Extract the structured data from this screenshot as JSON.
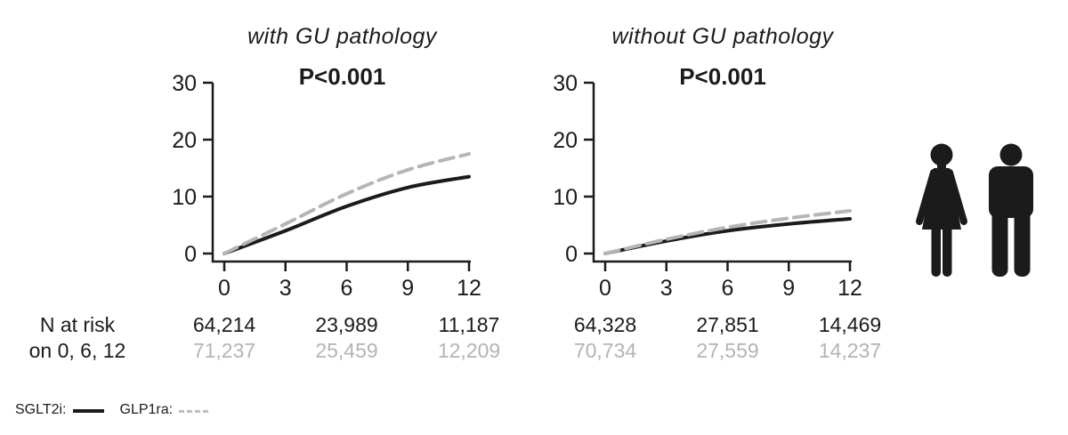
{
  "figure": {
    "background": "#ffffff",
    "colors": {
      "axis": "#1b1b1b",
      "sglt2i": "#1b1b1b",
      "glp1ra": "#b5b5b5",
      "gray_text": "#b4b4b4"
    },
    "risk_label": {
      "line1": "N at risk",
      "line2": "on 0, 6, 12"
    },
    "legend": [
      {
        "label": "SGLT2i:",
        "series": "SGLT2i",
        "style": "solid"
      },
      {
        "label": "GLP1ra:",
        "series": "GLP1ra",
        "style": "dashed"
      }
    ],
    "icons": [
      "woman-icon",
      "man-icon"
    ]
  },
  "chart_data": [
    {
      "type": "line",
      "title": "with GU pathology",
      "p_value": "P<0.001",
      "xlabel": "",
      "ylabel": "",
      "xlim": [
        0,
        12
      ],
      "ylim": [
        0,
        30
      ],
      "x": [
        0,
        3,
        6,
        9,
        12
      ],
      "x_ticks": [
        "0",
        "3",
        "6",
        "9",
        "12"
      ],
      "y_ticks": [
        "0",
        "10",
        "20",
        "30"
      ],
      "grid": false,
      "series": [
        {
          "name": "SGLT2i",
          "line": "solid",
          "color": "#1b1b1b",
          "values": [
            0,
            4.0,
            8.3,
            11.6,
            13.5
          ]
        },
        {
          "name": "GLP1ra",
          "line": "dashed",
          "color": "#b5b5b5",
          "values": [
            0,
            5.2,
            10.5,
            14.7,
            17.5
          ]
        }
      ],
      "n_at_risk": {
        "times": [
          0,
          6,
          12
        ],
        "rows": [
          {
            "series": "SGLT2i",
            "color": "#1b1b1b",
            "values": [
              "64,214",
              "23,989",
              "11,187"
            ]
          },
          {
            "series": "GLP1ra",
            "color": "#b4b4b4",
            "values": [
              "71,237",
              "25,459",
              "12,209"
            ]
          }
        ]
      }
    },
    {
      "type": "line",
      "title": "without GU pathology",
      "p_value": "P<0.001",
      "xlabel": "",
      "ylabel": "",
      "xlim": [
        0,
        12
      ],
      "ylim": [
        0,
        30
      ],
      "x": [
        0,
        3,
        6,
        9,
        12
      ],
      "x_ticks": [
        "0",
        "3",
        "6",
        "9",
        "12"
      ],
      "y_ticks": [
        "0",
        "10",
        "20",
        "30"
      ],
      "grid": false,
      "series": [
        {
          "name": "SGLT2i",
          "line": "solid",
          "color": "#1b1b1b",
          "values": [
            0,
            2.2,
            4.0,
            5.2,
            6.1
          ]
        },
        {
          "name": "GLP1ra",
          "line": "dashed",
          "color": "#b5b5b5",
          "values": [
            0,
            2.5,
            4.6,
            6.2,
            7.5
          ]
        }
      ],
      "n_at_risk": {
        "times": [
          0,
          6,
          12
        ],
        "rows": [
          {
            "series": "SGLT2i",
            "color": "#1b1b1b",
            "values": [
              "64,328",
              "27,851",
              "14,469"
            ]
          },
          {
            "series": "GLP1ra",
            "color": "#b4b4b4",
            "values": [
              "70,734",
              "27,559",
              "14,237"
            ]
          }
        ]
      }
    }
  ]
}
